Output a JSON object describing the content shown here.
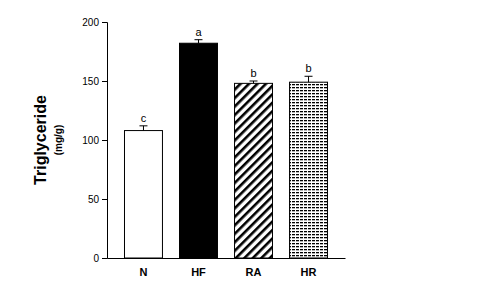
{
  "chart_data": {
    "type": "bar",
    "y_label": [
      "Triglyceride",
      "(mg/g)"
    ],
    "categories": [
      "N",
      "HF",
      "RA",
      "HR"
    ],
    "values": [
      108,
      182,
      148,
      149
    ],
    "errors": [
      4,
      3,
      2,
      5
    ],
    "annotations": [
      "c",
      "a",
      "b",
      "b"
    ],
    "colors": [
      "#ffffff",
      "#000000",
      "#ffffff",
      "#ffffff"
    ],
    "ylim": [
      0,
      200
    ],
    "yticks": [
      0,
      50,
      100,
      150,
      200
    ],
    "grid": false
  }
}
